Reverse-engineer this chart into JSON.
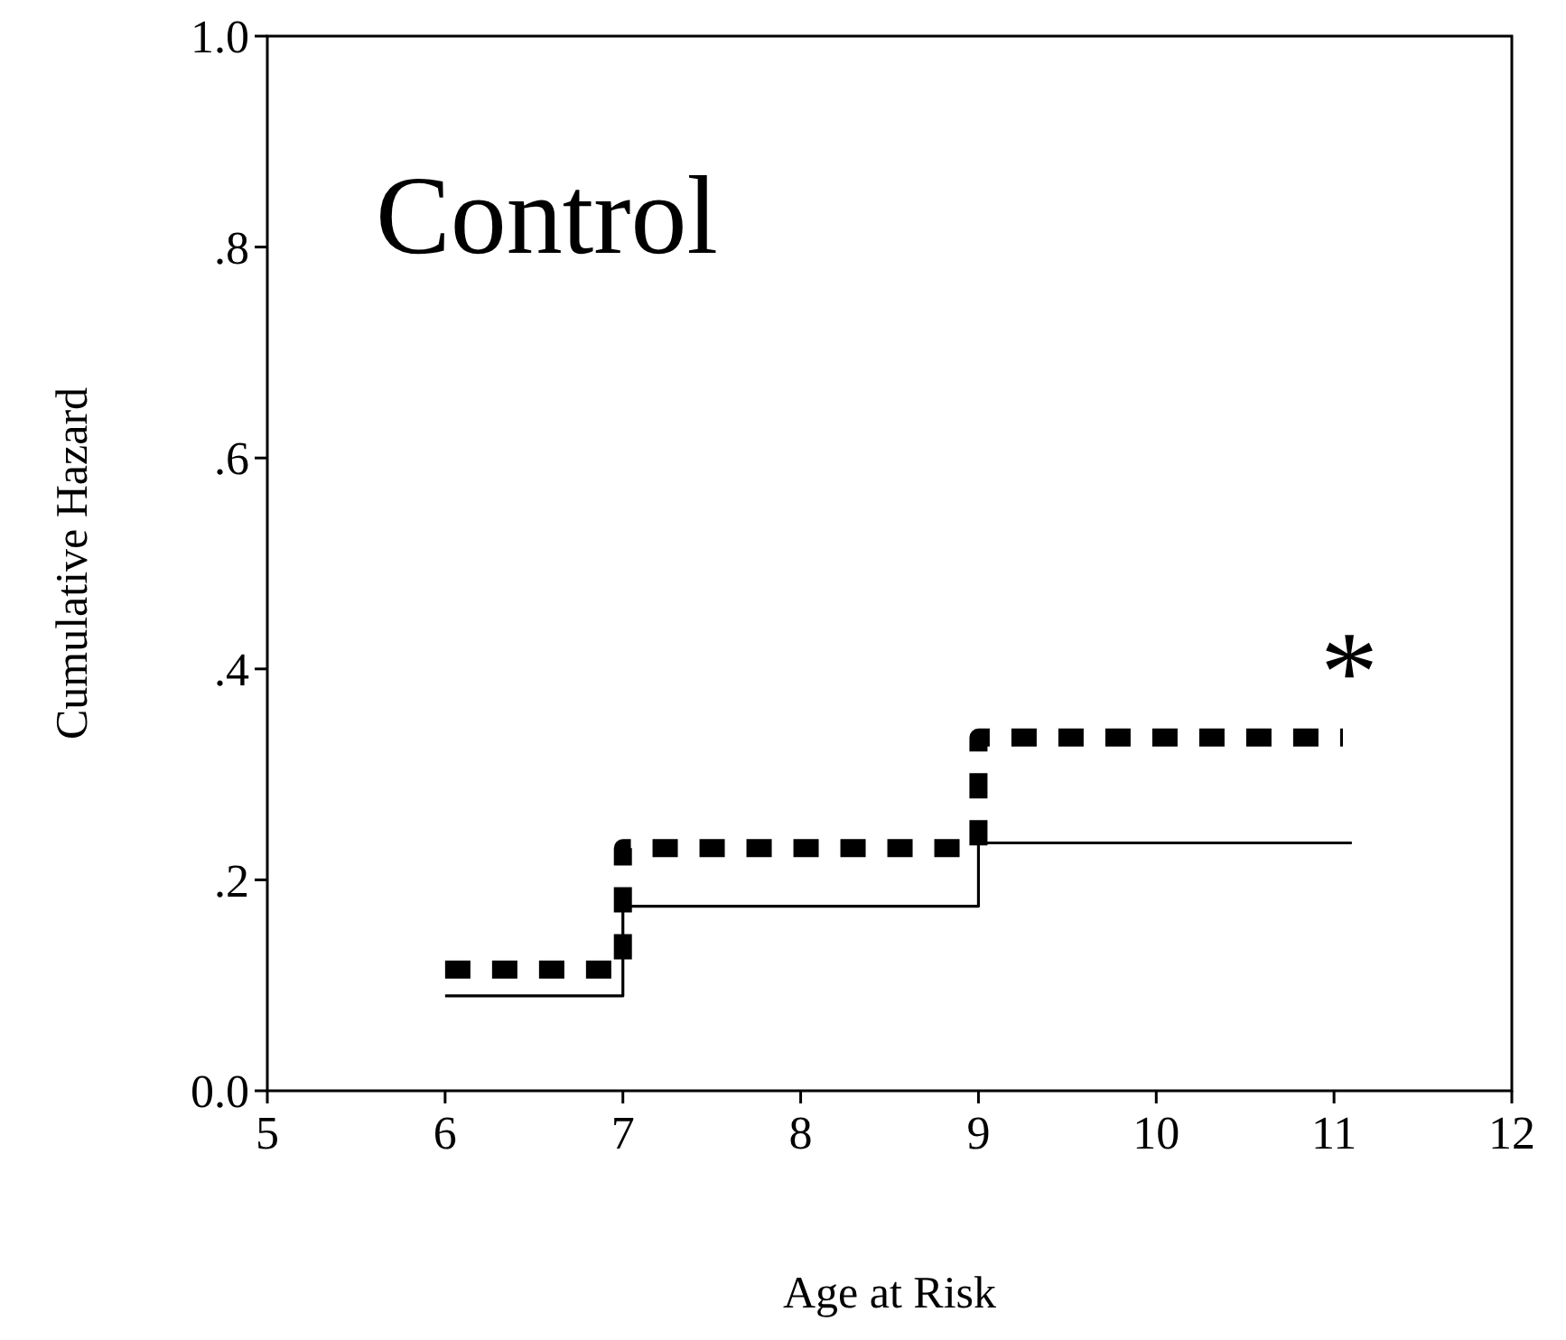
{
  "chart_data": {
    "type": "step",
    "title": "Control",
    "xlabel": "Age at Risk",
    "ylabel": "Cumulative Hazard",
    "xlim": [
      5,
      12
    ],
    "xticks": [
      5,
      6,
      7,
      8,
      9,
      10,
      11,
      12
    ],
    "ylim": [
      0,
      1
    ],
    "yticks": [
      {
        "value": 0,
        "label": "0.0"
      },
      {
        "value": 0.2,
        "label": ".2"
      },
      {
        "value": 0.4,
        "label": ".4"
      },
      {
        "value": 0.6,
        "label": ".6"
      },
      {
        "value": 0.8,
        "label": ".8"
      },
      {
        "value": 1,
        "label": "1.0"
      }
    ],
    "grid": false,
    "marker": "none",
    "series": [
      {
        "color": "#000000",
        "line_style": "dashed",
        "x": [
          6,
          7,
          9,
          11.05
        ],
        "values": [
          0.115,
          0.23,
          0.335,
          0.335
        ]
      },
      {
        "color": "#000000",
        "line_style": "solid",
        "x": [
          6,
          7,
          9,
          11.1
        ],
        "values": [
          0.09,
          0.175,
          0.235,
          0.235
        ]
      }
    ],
    "annotations": [
      "*"
    ]
  }
}
